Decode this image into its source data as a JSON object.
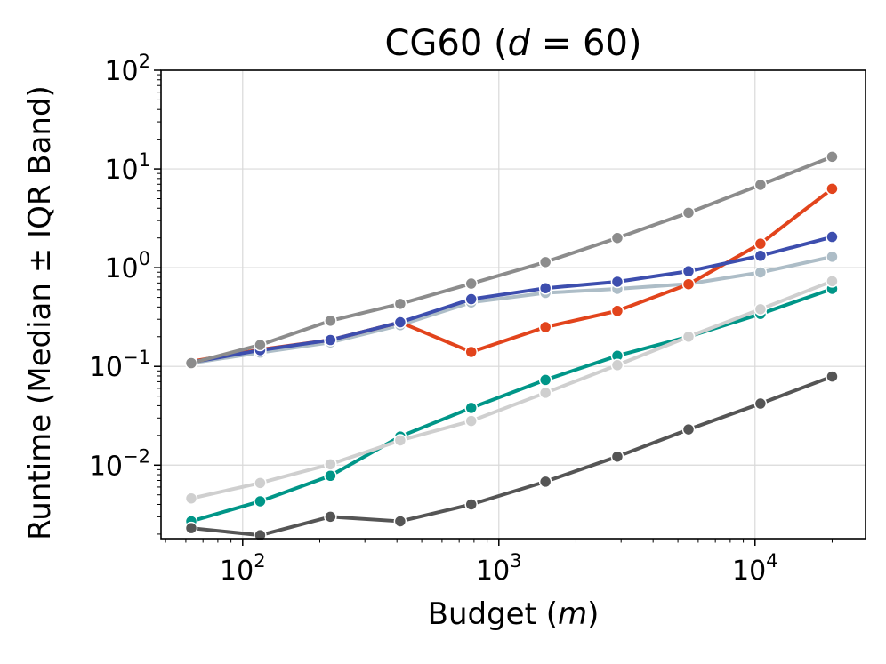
{
  "chart_data": {
    "type": "line",
    "title_prefix": "CG60 (",
    "title_var": "d",
    "title_suffix": " = 60)",
    "xlabel_prefix": "Budget (",
    "xlabel_var": "m",
    "xlabel_suffix": ")",
    "ylabel": "Runtime (Median ± IQR Band)",
    "xscale": "log",
    "yscale": "log",
    "xlim": [
      48,
      27000
    ],
    "ylim": [
      0.0018,
      100
    ],
    "grid": true,
    "x_ticks": [
      {
        "base": "10",
        "exp": "2"
      },
      {
        "base": "10",
        "exp": "3"
      },
      {
        "base": "10",
        "exp": "4"
      }
    ],
    "y_ticks": [
      {
        "base": "10",
        "exp": "−2"
      },
      {
        "base": "10",
        "exp": "−1"
      },
      {
        "base": "10",
        "exp": "0"
      },
      {
        "base": "10",
        "exp": "1"
      },
      {
        "base": "10",
        "exp": "2"
      }
    ],
    "x": [
      63,
      117,
      220,
      412,
      780,
      1520,
      2900,
      5500,
      10500,
      20000
    ],
    "series": [
      {
        "name": "light blue-gray",
        "color": "#adbdc7",
        "values": [
          0.108,
          0.138,
          0.175,
          0.262,
          0.445,
          0.555,
          0.61,
          0.685,
          0.895,
          1.29
        ]
      },
      {
        "name": "red-orange",
        "color": "#e2441c",
        "values": [
          0.112,
          0.148,
          0.185,
          0.28,
          0.14,
          0.25,
          0.365,
          0.68,
          1.75,
          6.3
        ]
      },
      {
        "name": "indigo",
        "color": "#3d4eae",
        "values": [
          0.11,
          0.146,
          0.185,
          0.28,
          0.48,
          0.62,
          0.72,
          0.92,
          1.32,
          2.05
        ]
      },
      {
        "name": "gray",
        "color": "#8c8c8c",
        "values": [
          0.108,
          0.165,
          0.29,
          0.43,
          0.69,
          1.14,
          2.0,
          3.6,
          6.9,
          13.3
        ]
      },
      {
        "name": "teal",
        "color": "#009688",
        "values": [
          0.0027,
          0.0043,
          0.0078,
          0.0195,
          0.038,
          0.073,
          0.128,
          0.2,
          0.34,
          0.61
        ]
      },
      {
        "name": "light gray",
        "color": "#cfcfcf",
        "values": [
          0.0046,
          0.0066,
          0.0102,
          0.0178,
          0.028,
          0.054,
          0.103,
          0.2,
          0.38,
          0.73
        ]
      },
      {
        "name": "dark gray",
        "color": "#555555",
        "values": [
          0.0023,
          0.00195,
          0.003,
          0.0027,
          0.004,
          0.0068,
          0.0122,
          0.023,
          0.042,
          0.079
        ]
      }
    ]
  }
}
